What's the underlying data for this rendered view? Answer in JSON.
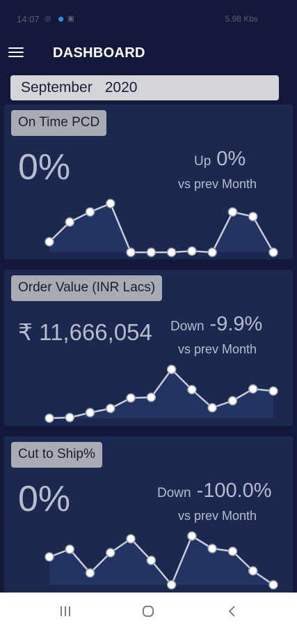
{
  "status_bar": {
    "time": "14:07",
    "right_text": "5.98 Kbs"
  },
  "header": {
    "title": "DASHBOARD",
    "menu_icon": "hamburger-menu-icon"
  },
  "filter": {
    "month": "September",
    "year": "2020"
  },
  "cards": [
    {
      "label": "On Time PCD",
      "value": "0%",
      "direction": "Up",
      "change": "0%",
      "comparison": "vs prev Month",
      "trend": [
        25,
        72,
        96,
        116,
        0,
        0,
        0,
        3,
        0,
        96,
        85,
        0
      ]
    },
    {
      "label": "Order Value (INR Lacs)",
      "value": "₹ 11,666,054",
      "direction": "Down",
      "change": "-9.9%",
      "comparison": "vs prev Month",
      "trend": [
        0,
        1,
        8,
        14,
        29,
        30,
        70,
        41,
        15,
        25,
        42,
        39
      ]
    },
    {
      "label": "Cut to Ship%",
      "value": "0%",
      "direction": "Down",
      "change": "-100.0%",
      "comparison": "vs prev Month",
      "trend": [
        40,
        51,
        17,
        46,
        66,
        35,
        0,
        70,
        52,
        48,
        20,
        0
      ]
    }
  ],
  "colors": {
    "background": "#14183a",
    "card": "#1b2850",
    "label_badge": "#a8aab4",
    "line": "#c9ccd6"
  }
}
